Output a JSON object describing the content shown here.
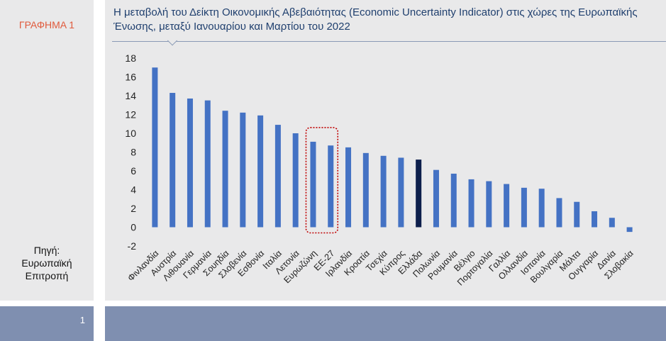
{
  "figure_label": "ΓΡΑΦΗΜΑ 1",
  "source": [
    "Πηγή:",
    "Ευρωπαϊκή",
    "Επιτροπή"
  ],
  "page_number": "1",
  "colors": {
    "bar": "#4472c4",
    "highlight_bar": "#0d1f4c",
    "annotation_box": "#c00000"
  },
  "chart_data": {
    "type": "bar",
    "title": "Η μεταβολή του Δείκτη Οικονομικής Αβεβαιότητας (Economic Uncertainty Indicator) στις χώρες της Ευρωπαϊκής Ένωσης, μεταξύ Ιανουαρίου και Μαρτίου του 2022",
    "xlabel": "",
    "ylabel": "",
    "ylim": [
      -2,
      18
    ],
    "yticks": [
      -2,
      0,
      2,
      4,
      6,
      8,
      10,
      12,
      14,
      16,
      18
    ],
    "grid": false,
    "legend": "none",
    "categories": [
      "Φινλανδία",
      "Αυστρία",
      "Λιθουανία",
      "Γερμανία",
      "Σουηδία",
      "Σλοβενία",
      "Εσθονία",
      "Ιταλία",
      "Λετονία",
      "Ευρωζώνη",
      "ΕΕ-27",
      "Ιρλανδία",
      "Κροατία",
      "Τσεχία",
      "Κύπρος",
      "Ελλάδα",
      "Πολωνία",
      "Ρουμανία",
      "Βέλγιο",
      "Πορτογαλία",
      "Γαλλία",
      "Ολλανδία",
      "Ισπανία",
      "Βουλγαρία",
      "Μάλτα",
      "Ουγγαρία",
      "Δανία",
      "Σλοβακία"
    ],
    "values": [
      17.0,
      14.3,
      13.7,
      13.5,
      12.4,
      12.2,
      11.9,
      10.9,
      10.0,
      9.1,
      8.7,
      8.5,
      7.9,
      7.6,
      7.4,
      7.2,
      6.1,
      5.7,
      5.1,
      4.9,
      4.6,
      4.2,
      4.1,
      3.1,
      2.7,
      1.7,
      1.0,
      -0.5
    ],
    "highlight_category": "Ελλάδα",
    "boxed_categories": [
      "Ευρωζώνη",
      "ΕΕ-27"
    ]
  }
}
